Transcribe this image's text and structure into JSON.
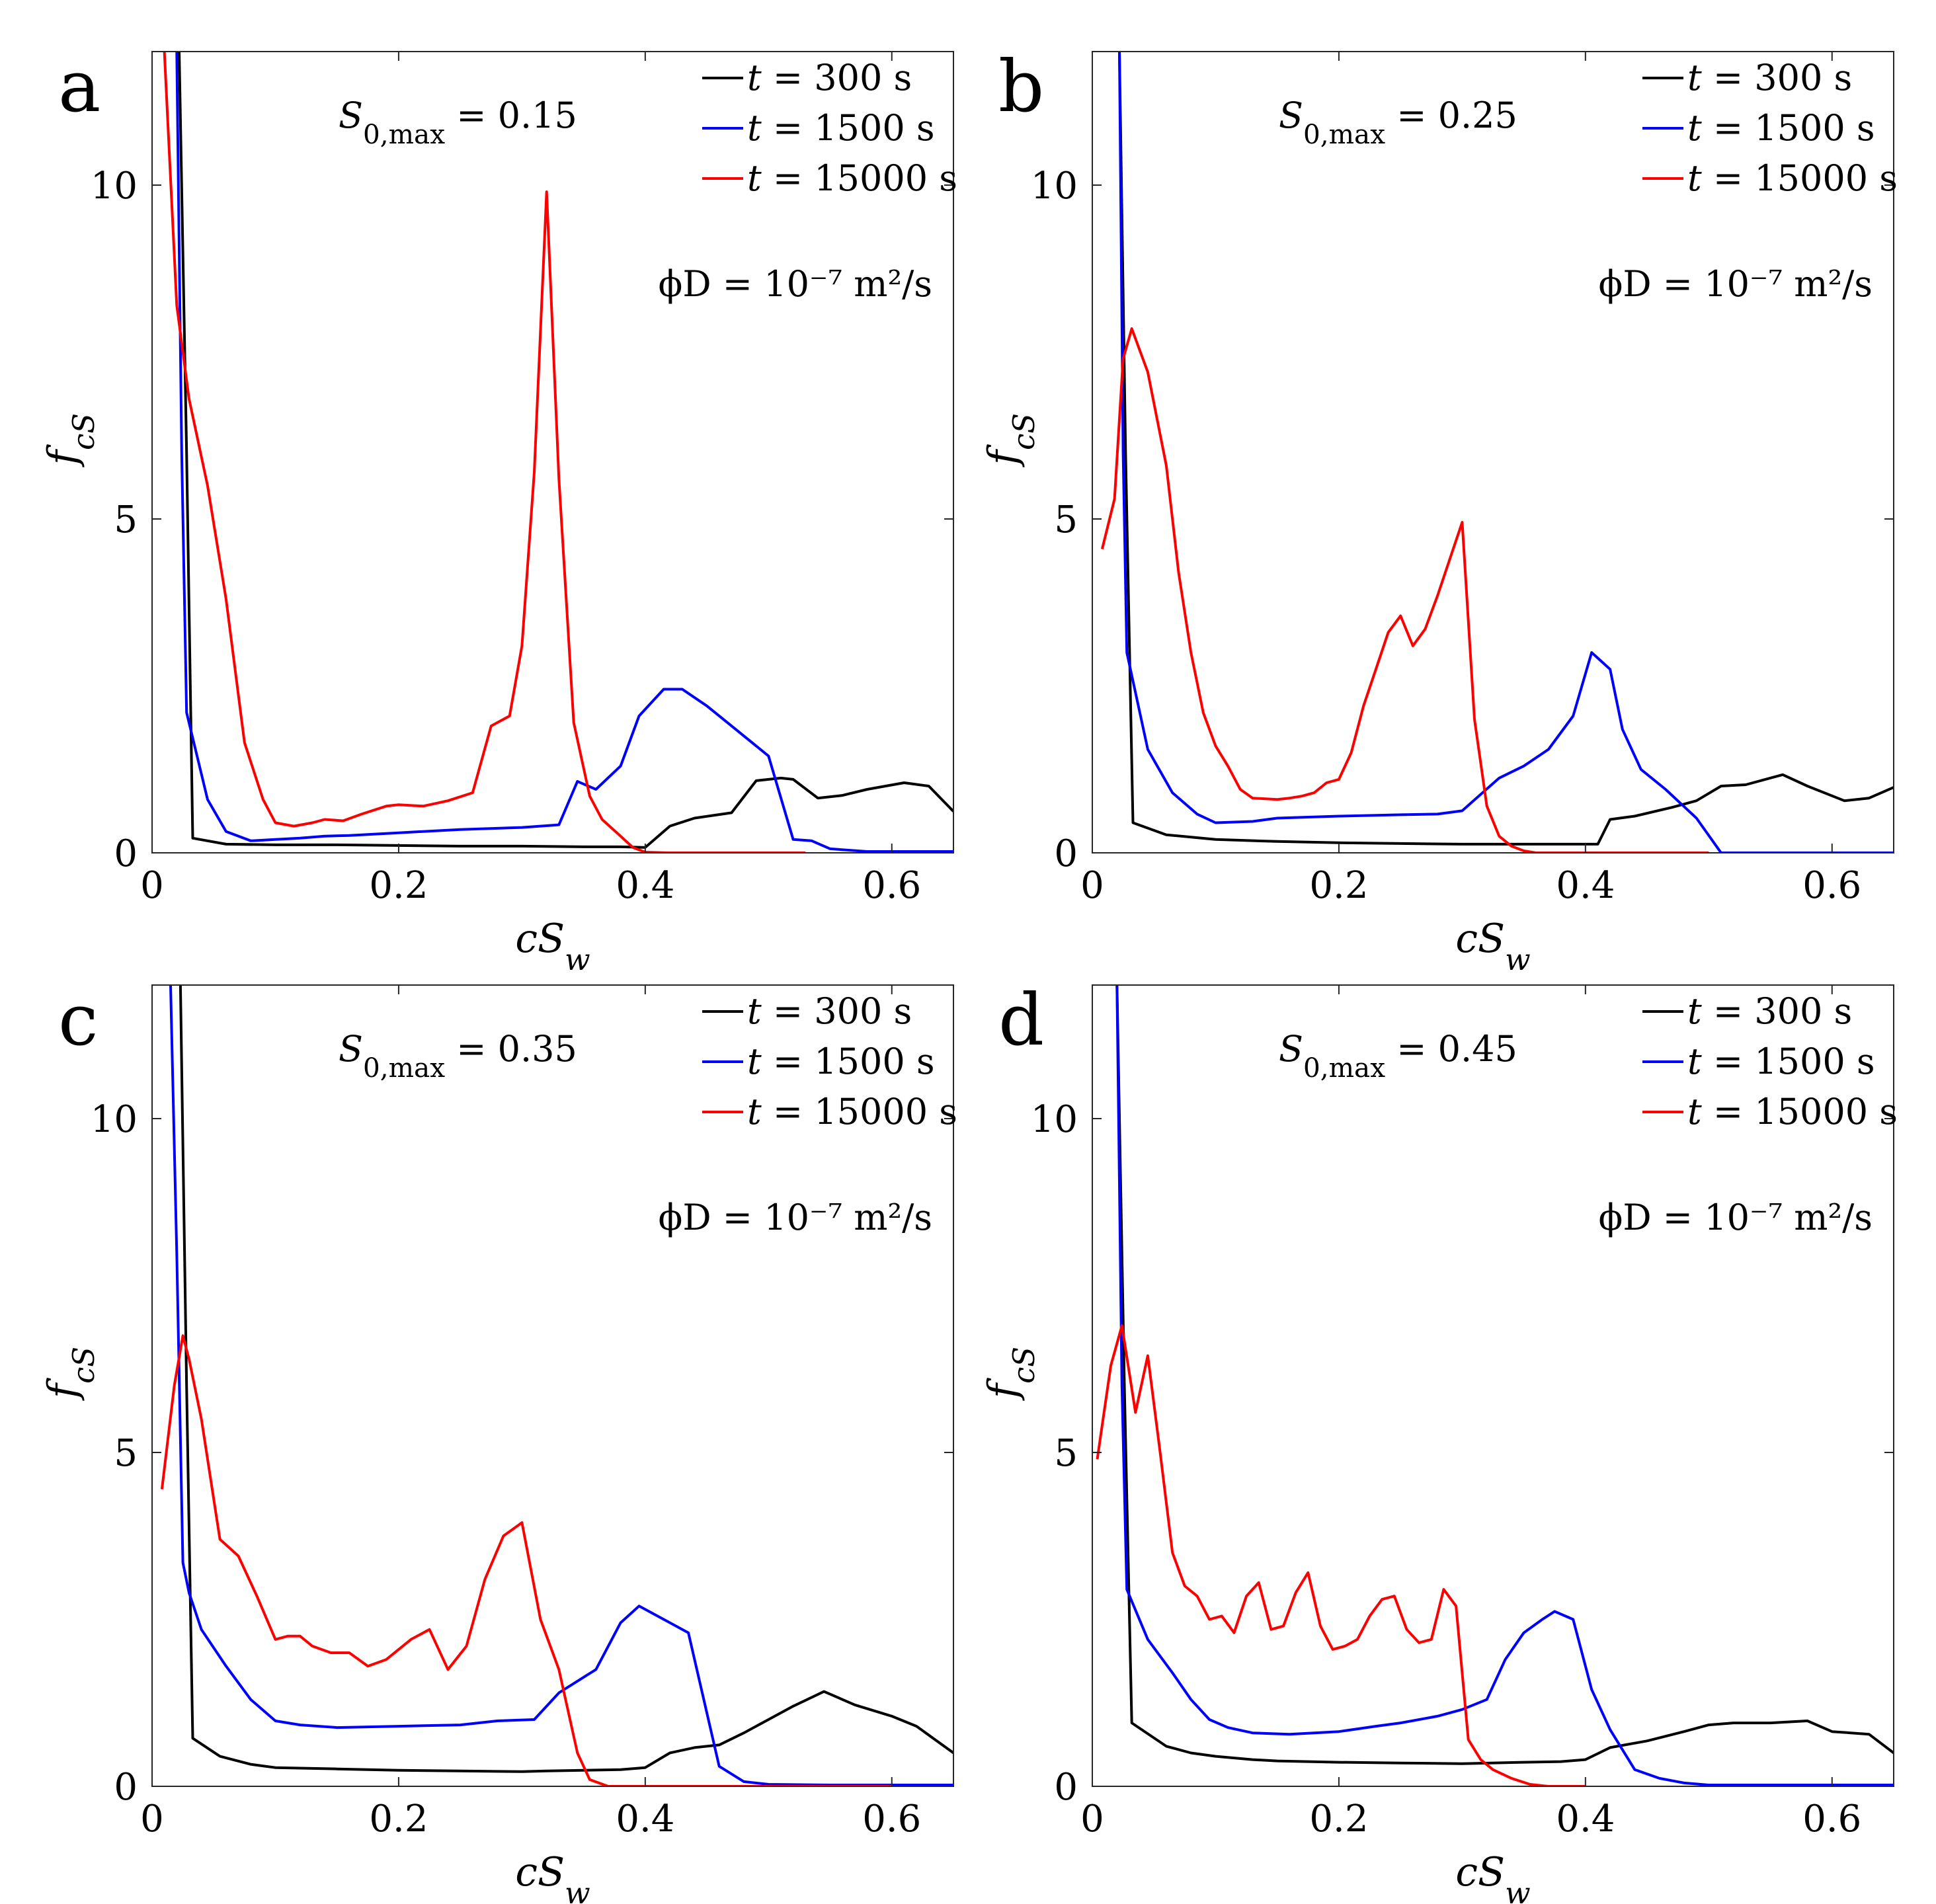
{
  "chart_data": [
    {
      "type": "line",
      "panel_label": "a",
      "xlabel": "cS_w",
      "ylabel": "f_cS",
      "xlim": [
        0,
        0.65
      ],
      "ylim": [
        0,
        12
      ],
      "xticks": [
        0,
        0.2,
        0.4,
        0.6
      ],
      "xtick_labels": [
        "0",
        "0.2",
        "0.4",
        "0.6"
      ],
      "yticks": [
        0,
        5,
        10
      ],
      "ytick_labels": [
        "0",
        "5",
        "10"
      ],
      "grid": false,
      "legend_position": "top-right",
      "annotations": [
        "S0,max = 0.15",
        "ϕD = 10⁻⁷ m²/s"
      ],
      "series": [
        {
          "name": "t = 300 s",
          "color": "#000000",
          "x": [
            0.022,
            0.028,
            0.033,
            0.06,
            0.1,
            0.15,
            0.2,
            0.25,
            0.3,
            0.35,
            0.38,
            0.4,
            0.42,
            0.44,
            0.47,
            0.49,
            0.51,
            0.52,
            0.54,
            0.56,
            0.58,
            0.61,
            0.63,
            0.65
          ],
          "y": [
            12,
            6,
            0.22,
            0.13,
            0.12,
            0.12,
            0.11,
            0.1,
            0.1,
            0.09,
            0.09,
            0.08,
            0.4,
            0.52,
            0.6,
            1.08,
            1.12,
            1.1,
            0.82,
            0.86,
            0.95,
            1.05,
            1.0,
            0.62
          ]
        },
        {
          "name": "t = 1500 s",
          "color": "#0000ff",
          "x": [
            0.02,
            0.024,
            0.028,
            0.045,
            0.06,
            0.08,
            0.1,
            0.12,
            0.14,
            0.16,
            0.2,
            0.25,
            0.3,
            0.33,
            0.345,
            0.36,
            0.38,
            0.395,
            0.415,
            0.43,
            0.45,
            0.47,
            0.5,
            0.52,
            0.535,
            0.55,
            0.58,
            0.65
          ],
          "y": [
            12,
            6,
            2.1,
            0.8,
            0.32,
            0.18,
            0.2,
            0.22,
            0.25,
            0.26,
            0.3,
            0.35,
            0.38,
            0.42,
            1.07,
            0.95,
            1.3,
            2.05,
            2.45,
            2.45,
            2.2,
            1.9,
            1.45,
            0.2,
            0.18,
            0.06,
            0.02,
            0.02
          ]
        },
        {
          "name": "t = 15000 s",
          "color": "#ff0000",
          "x": [
            0.01,
            0.02,
            0.03,
            0.045,
            0.06,
            0.075,
            0.09,
            0.1,
            0.115,
            0.13,
            0.14,
            0.155,
            0.17,
            0.19,
            0.2,
            0.22,
            0.24,
            0.26,
            0.275,
            0.28,
            0.29,
            0.3,
            0.31,
            0.32,
            0.33,
            0.342,
            0.355,
            0.365,
            0.38,
            0.39,
            0.4,
            0.42,
            0.45,
            0.5,
            0.53
          ],
          "y": [
            12,
            8.2,
            6.8,
            5.5,
            3.8,
            1.65,
            0.8,
            0.45,
            0.4,
            0.45,
            0.5,
            0.48,
            0.58,
            0.7,
            0.72,
            0.7,
            0.78,
            0.9,
            1.9,
            1.95,
            2.05,
            3.1,
            5.7,
            9.9,
            5.6,
            1.95,
            0.85,
            0.5,
            0.25,
            0.08,
            0.01,
            0.0,
            0.0,
            0.0,
            0.0
          ]
        }
      ]
    },
    {
      "type": "line",
      "panel_label": "b",
      "xlabel": "cS_w",
      "ylabel": "f_cS",
      "xlim": [
        0,
        0.65
      ],
      "ylim": [
        0,
        12
      ],
      "xticks": [
        0,
        0.2,
        0.4,
        0.6
      ],
      "xtick_labels": [
        "0",
        "0.2",
        "0.4",
        "0.6"
      ],
      "yticks": [
        0,
        5,
        10
      ],
      "ytick_labels": [
        "0",
        "5",
        "10"
      ],
      "grid": false,
      "legend_position": "top-right",
      "annotations": [
        "S0,max = 0.25",
        "ϕD = 10⁻⁷ m²/s"
      ],
      "series": [
        {
          "name": "t = 300 s",
          "color": "#000000",
          "x": [
            0.022,
            0.027,
            0.033,
            0.06,
            0.1,
            0.15,
            0.2,
            0.25,
            0.3,
            0.35,
            0.4,
            0.41,
            0.42,
            0.44,
            0.47,
            0.49,
            0.51,
            0.53,
            0.56,
            0.58,
            0.61,
            0.63,
            0.65
          ],
          "y": [
            12,
            6,
            0.45,
            0.27,
            0.2,
            0.17,
            0.15,
            0.14,
            0.13,
            0.13,
            0.13,
            0.13,
            0.5,
            0.55,
            0.68,
            0.78,
            1.0,
            1.02,
            1.17,
            1.0,
            0.78,
            0.82,
            0.98
          ]
        },
        {
          "name": "t = 1500 s",
          "color": "#0000ff",
          "x": [
            0.022,
            0.025,
            0.028,
            0.045,
            0.065,
            0.085,
            0.1,
            0.13,
            0.15,
            0.2,
            0.25,
            0.28,
            0.3,
            0.33,
            0.35,
            0.37,
            0.39,
            0.405,
            0.42,
            0.43,
            0.445,
            0.465,
            0.49,
            0.51,
            0.53,
            0.65
          ],
          "y": [
            12,
            6,
            3.0,
            1.55,
            0.9,
            0.58,
            0.45,
            0.47,
            0.52,
            0.55,
            0.57,
            0.58,
            0.63,
            1.12,
            1.3,
            1.55,
            2.05,
            3.0,
            2.75,
            1.85,
            1.25,
            0.95,
            0.52,
            0.0,
            0.0,
            0.0
          ]
        },
        {
          "name": "t = 15000 s",
          "color": "#ff0000",
          "x": [
            0.008,
            0.018,
            0.025,
            0.032,
            0.045,
            0.06,
            0.07,
            0.08,
            0.09,
            0.1,
            0.11,
            0.12,
            0.13,
            0.15,
            0.16,
            0.17,
            0.18,
            0.19,
            0.2,
            0.21,
            0.22,
            0.23,
            0.24,
            0.25,
            0.26,
            0.27,
            0.28,
            0.29,
            0.3,
            0.31,
            0.32,
            0.33,
            0.34,
            0.35,
            0.36,
            0.38,
            0.4,
            0.45,
            0.5
          ],
          "y": [
            4.55,
            5.3,
            7.4,
            7.85,
            7.2,
            5.8,
            4.2,
            3.0,
            2.1,
            1.6,
            1.3,
            0.95,
            0.82,
            0.8,
            0.82,
            0.85,
            0.9,
            1.05,
            1.1,
            1.5,
            2.2,
            2.75,
            3.3,
            3.55,
            3.1,
            3.35,
            3.85,
            4.4,
            4.95,
            2.0,
            0.7,
            0.25,
            0.1,
            0.03,
            0.0,
            0.0,
            0.0,
            0.0,
            0.0
          ]
        }
      ]
    },
    {
      "type": "line",
      "panel_label": "c",
      "xlabel": "cS_w",
      "ylabel": "f_cS",
      "xlim": [
        0,
        0.65
      ],
      "ylim": [
        0,
        12
      ],
      "xticks": [
        0,
        0.2,
        0.4,
        0.6
      ],
      "xtick_labels": [
        "0",
        "0.2",
        "0.4",
        "0.6"
      ],
      "yticks": [
        0,
        5,
        10
      ],
      "ytick_labels": [
        "0",
        "5",
        "10"
      ],
      "grid": false,
      "legend_position": "top-right",
      "annotations": [
        "S0,max = 0.35",
        "ϕD = 10⁻⁷ m²/s"
      ],
      "series": [
        {
          "name": "t = 300 s",
          "color": "#000000",
          "x": [
            0.023,
            0.028,
            0.033,
            0.055,
            0.08,
            0.1,
            0.15,
            0.2,
            0.25,
            0.3,
            0.32,
            0.35,
            0.38,
            0.4,
            0.42,
            0.44,
            0.46,
            0.48,
            0.5,
            0.52,
            0.545,
            0.57,
            0.6,
            0.62,
            0.65
          ],
          "y": [
            12,
            6,
            0.72,
            0.45,
            0.33,
            0.28,
            0.26,
            0.24,
            0.23,
            0.22,
            0.23,
            0.24,
            0.25,
            0.28,
            0.5,
            0.58,
            0.62,
            0.8,
            1.0,
            1.2,
            1.42,
            1.22,
            1.05,
            0.9,
            0.5
          ]
        },
        {
          "name": "t = 1500 s",
          "color": "#0000ff",
          "x": [
            0.015,
            0.02,
            0.025,
            0.03,
            0.04,
            0.06,
            0.08,
            0.1,
            0.12,
            0.15,
            0.2,
            0.25,
            0.28,
            0.31,
            0.33,
            0.36,
            0.38,
            0.395,
            0.415,
            0.435,
            0.46,
            0.48,
            0.5,
            0.55,
            0.6,
            0.65
          ],
          "y": [
            12,
            8.0,
            3.35,
            2.9,
            2.35,
            1.8,
            1.3,
            0.98,
            0.92,
            0.88,
            0.9,
            0.92,
            0.98,
            1.0,
            1.4,
            1.75,
            2.45,
            2.7,
            2.5,
            2.3,
            0.3,
            0.07,
            0.03,
            0.02,
            0.02,
            0.02
          ]
        },
        {
          "name": "t = 15000 s",
          "color": "#ff0000",
          "x": [
            0.008,
            0.018,
            0.025,
            0.03,
            0.04,
            0.055,
            0.07,
            0.085,
            0.1,
            0.11,
            0.12,
            0.13,
            0.145,
            0.16,
            0.175,
            0.19,
            0.21,
            0.225,
            0.24,
            0.255,
            0.27,
            0.285,
            0.3,
            0.315,
            0.33,
            0.345,
            0.355,
            0.37,
            0.4,
            0.45,
            0.5,
            0.6
          ],
          "y": [
            4.45,
            6.0,
            6.75,
            6.4,
            5.5,
            3.7,
            3.45,
            2.85,
            2.2,
            2.25,
            2.25,
            2.1,
            2.0,
            2.0,
            1.8,
            1.9,
            2.2,
            2.35,
            1.75,
            2.1,
            3.1,
            3.75,
            3.95,
            2.5,
            1.75,
            0.5,
            0.1,
            0.0,
            0.0,
            0.0,
            0.0,
            0.0
          ]
        }
      ]
    },
    {
      "type": "line",
      "panel_label": "d",
      "xlabel": "cS_w",
      "ylabel": "f_cS",
      "xlim": [
        0,
        0.65
      ],
      "ylim": [
        0,
        12
      ],
      "xticks": [
        0,
        0.2,
        0.4,
        0.6
      ],
      "xtick_labels": [
        "0",
        "0.2",
        "0.4",
        "0.6"
      ],
      "yticks": [
        0,
        5,
        10
      ],
      "ytick_labels": [
        "0",
        "5",
        "10"
      ],
      "grid": false,
      "legend_position": "top-right",
      "annotations": [
        "S0,max = 0.45",
        "ϕD = 10⁻⁷ m²/s"
      ],
      "series": [
        {
          "name": "t = 300 s",
          "color": "#000000",
          "x": [
            0.02,
            0.026,
            0.032,
            0.06,
            0.08,
            0.1,
            0.13,
            0.15,
            0.2,
            0.25,
            0.3,
            0.35,
            0.38,
            0.4,
            0.42,
            0.45,
            0.48,
            0.5,
            0.52,
            0.55,
            0.58,
            0.6,
            0.63,
            0.65
          ],
          "y": [
            12,
            6,
            0.95,
            0.6,
            0.5,
            0.45,
            0.4,
            0.38,
            0.36,
            0.35,
            0.34,
            0.36,
            0.37,
            0.4,
            0.58,
            0.68,
            0.82,
            0.92,
            0.95,
            0.95,
            0.98,
            0.82,
            0.78,
            0.5
          ]
        },
        {
          "name": "t = 1500 s",
          "color": "#0000ff",
          "x": [
            0.02,
            0.024,
            0.028,
            0.045,
            0.065,
            0.08,
            0.095,
            0.11,
            0.13,
            0.16,
            0.2,
            0.23,
            0.25,
            0.28,
            0.3,
            0.32,
            0.335,
            0.35,
            0.365,
            0.375,
            0.39,
            0.405,
            0.42,
            0.44,
            0.46,
            0.48,
            0.5,
            0.55,
            0.65
          ],
          "y": [
            12,
            6,
            2.95,
            2.2,
            1.7,
            1.3,
            1.0,
            0.88,
            0.8,
            0.78,
            0.82,
            0.9,
            0.95,
            1.05,
            1.15,
            1.3,
            1.9,
            2.3,
            2.5,
            2.62,
            2.5,
            1.45,
            0.85,
            0.25,
            0.12,
            0.05,
            0.02,
            0.02,
            0.02
          ]
        },
        {
          "name": "t = 15000 s",
          "color": "#ff0000",
          "x": [
            0.004,
            0.015,
            0.024,
            0.035,
            0.045,
            0.055,
            0.065,
            0.075,
            0.085,
            0.095,
            0.105,
            0.115,
            0.125,
            0.135,
            0.145,
            0.155,
            0.165,
            0.175,
            0.185,
            0.195,
            0.205,
            0.215,
            0.225,
            0.235,
            0.245,
            0.255,
            0.265,
            0.275,
            0.285,
            0.295,
            0.305,
            0.315,
            0.325,
            0.34,
            0.355,
            0.37,
            0.4
          ],
          "y": [
            4.9,
            6.3,
            6.9,
            5.6,
            6.45,
            5.0,
            3.5,
            3.0,
            2.85,
            2.5,
            2.55,
            2.3,
            2.85,
            3.05,
            2.35,
            2.4,
            2.9,
            3.2,
            2.4,
            2.05,
            2.1,
            2.2,
            2.55,
            2.8,
            2.85,
            2.35,
            2.15,
            2.2,
            2.95,
            2.7,
            0.7,
            0.4,
            0.25,
            0.12,
            0.03,
            0.0,
            0.0
          ]
        }
      ]
    }
  ]
}
